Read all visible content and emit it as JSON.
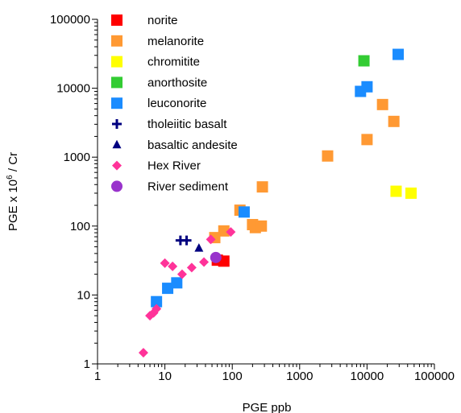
{
  "chart_data": {
    "type": "scatter",
    "x_scale": "log",
    "y_scale": "log",
    "xlim": [
      1,
      100000
    ],
    "ylim": [
      1,
      100000
    ],
    "grid": false,
    "legend_position": "top-left",
    "xlabel": "PGE ppb",
    "ylabel_main": "PGE x 10",
    "ylabel_sup": "6",
    "ylabel_tail": " / Cr",
    "x_ticks": [
      1,
      10,
      100,
      1000,
      10000,
      100000
    ],
    "x_tick_labels": [
      "1",
      "10",
      "100",
      "1000",
      "10000",
      "100000"
    ],
    "y_ticks": [
      1,
      10,
      100,
      1000,
      10000,
      100000
    ],
    "y_tick_labels": [
      "1",
      "10",
      "100",
      "1000",
      "10000",
      "100000"
    ],
    "series": [
      {
        "name": "norite",
        "marker": "square",
        "color": "#ff0000",
        "points": [
          [
            60,
            32
          ],
          [
            75,
            31
          ]
        ]
      },
      {
        "name": "melanorite",
        "marker": "square",
        "color": "#ff9933",
        "points": [
          [
            280,
            370
          ],
          [
            130,
            170
          ],
          [
            75,
            85
          ],
          [
            200,
            105
          ],
          [
            220,
            95
          ],
          [
            270,
            100
          ],
          [
            55,
            68
          ],
          [
            2600,
            1040
          ],
          [
            10000,
            1800
          ],
          [
            17000,
            5800
          ],
          [
            25000,
            3300
          ]
        ]
      },
      {
        "name": "chromitite",
        "marker": "square",
        "color": "#ffff00",
        "points": [
          [
            27000,
            320
          ],
          [
            45000,
            300
          ]
        ]
      },
      {
        "name": "anorthosite",
        "marker": "square",
        "color": "#33cc33",
        "points": [
          [
            9000,
            25000
          ]
        ]
      },
      {
        "name": "leuconorite",
        "marker": "square",
        "color": "#1a8cff",
        "points": [
          [
            29000,
            31000
          ],
          [
            10000,
            10500
          ],
          [
            8000,
            9000
          ],
          [
            150,
            160
          ],
          [
            15,
            15
          ],
          [
            11,
            12.5
          ],
          [
            7.5,
            8
          ]
        ]
      },
      {
        "name": "tholeiitic basalt",
        "marker": "plus",
        "color": "#000080",
        "points": [
          [
            17,
            62
          ],
          [
            21,
            62
          ]
        ]
      },
      {
        "name": "basaltic andesite",
        "marker": "triangle",
        "color": "#000080",
        "points": [
          [
            32,
            48
          ]
        ]
      },
      {
        "name": "Hex River",
        "marker": "diamond",
        "color": "#ff3399",
        "points": [
          [
            4.8,
            1.45
          ],
          [
            6,
            5
          ],
          [
            6.8,
            5.5
          ],
          [
            7.5,
            6.3
          ],
          [
            10,
            29
          ],
          [
            13,
            26
          ],
          [
            18,
            20
          ],
          [
            25,
            25
          ],
          [
            38,
            30
          ],
          [
            48,
            64
          ],
          [
            95,
            82
          ]
        ]
      },
      {
        "name": "River sediment",
        "marker": "circle",
        "color": "#9933cc",
        "points": [
          [
            57,
            35
          ]
        ]
      }
    ]
  }
}
